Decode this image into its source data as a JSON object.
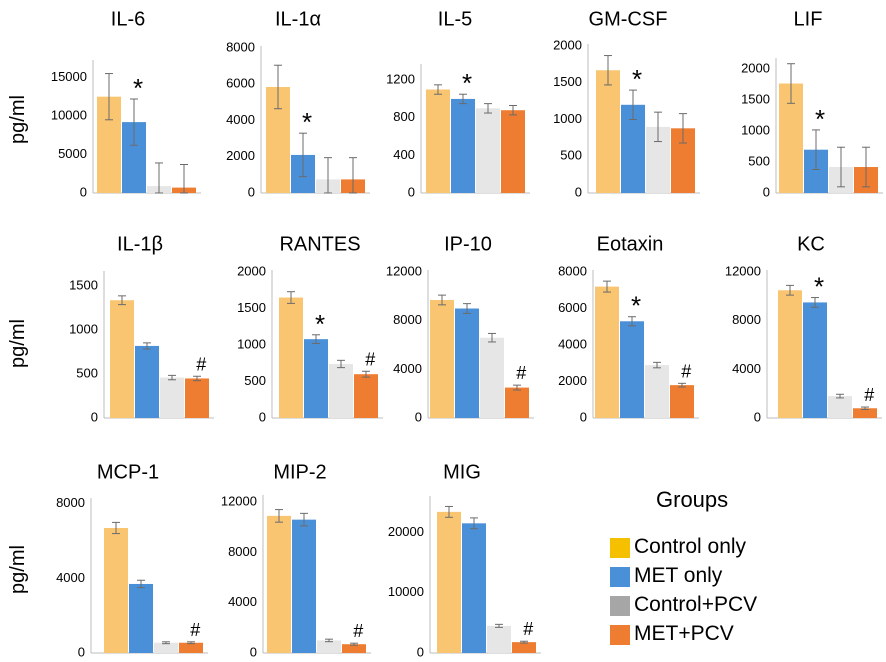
{
  "y_axis_label": "pg/ml",
  "legend": {
    "title": "Groups",
    "items": [
      {
        "label": "Control only",
        "color": "#F5C000"
      },
      {
        "label": "MET only",
        "color": "#4A90D9"
      },
      {
        "label": "Control+PCV",
        "color": "#A6A6A6"
      },
      {
        "label": "MET+PCV",
        "color": "#EE7D31"
      }
    ]
  },
  "bar_colors": [
    "#F9C571",
    "#4A90D9",
    "#E6E6E6",
    "#EE7D31"
  ],
  "chart_data": [
    {
      "type": "bar",
      "title": "IL-6",
      "categories": [
        "Control only",
        "MET only",
        "Control+PCV",
        "MET+PCV"
      ],
      "values": [
        12500,
        9200,
        900,
        700
      ],
      "errors": [
        3000,
        3000,
        3000,
        3000
      ],
      "yticks": [
        0,
        5000,
        10000,
        15000
      ],
      "ylim": [
        0,
        17000
      ],
      "markers": [
        "",
        "*",
        "",
        ""
      ]
    },
    {
      "type": "bar",
      "title": "IL-1α",
      "categories": [
        "Control only",
        "MET only",
        "Control+PCV",
        "MET+PCV"
      ],
      "values": [
        5850,
        2100,
        750,
        750
      ],
      "errors": [
        1200,
        1200,
        1200,
        1200
      ],
      "yticks": [
        0,
        2000,
        4000,
        6000,
        8000
      ],
      "ylim": [
        0,
        8000
      ],
      "markers": [
        "",
        "*",
        "",
        ""
      ]
    },
    {
      "type": "bar",
      "title": "IL-5",
      "categories": [
        "Control only",
        "MET only",
        "Control+PCV",
        "MET+PCV"
      ],
      "values": [
        1100,
        1000,
        900,
        880
      ],
      "errors": [
        50,
        50,
        50,
        50
      ],
      "yticks": [
        0,
        400,
        800,
        1200
      ],
      "ylim": [
        0,
        1350
      ],
      "markers": [
        "",
        "*",
        "",
        ""
      ]
    },
    {
      "type": "bar",
      "title": "GM-CSF",
      "categories": [
        "Control only",
        "MET only",
        "Control+PCV",
        "MET+PCV"
      ],
      "values": [
        1670,
        1200,
        900,
        880
      ],
      "errors": [
        200,
        200,
        200,
        200
      ],
      "yticks": [
        0,
        500,
        1000,
        1500,
        2000
      ],
      "ylim": [
        0,
        2000
      ],
      "markers": [
        "",
        "*",
        "",
        ""
      ]
    },
    {
      "type": "bar",
      "title": "LIF",
      "categories": [
        "Control only",
        "MET only",
        "Control+PCV",
        "MET+PCV"
      ],
      "values": [
        1770,
        700,
        420,
        420
      ],
      "errors": [
        320,
        320,
        320,
        320
      ],
      "yticks": [
        0,
        500,
        1000,
        1500,
        2000
      ],
      "ylim": [
        0,
        2150
      ],
      "markers": [
        "",
        "*",
        "",
        ""
      ]
    },
    {
      "type": "bar",
      "title": "IL-1β",
      "categories": [
        "Control only",
        "MET only",
        "Control+PCV",
        "MET+PCV"
      ],
      "values": [
        1340,
        820,
        460,
        450
      ],
      "errors": [
        50,
        35,
        25,
        25
      ],
      "yticks": [
        0,
        500,
        1000,
        1500
      ],
      "ylim": [
        0,
        1650
      ],
      "markers": [
        "",
        "",
        "",
        "#"
      ]
    },
    {
      "type": "bar",
      "title": "RANTES",
      "categories": [
        "Control only",
        "MET only",
        "Control+PCV",
        "MET+PCV"
      ],
      "values": [
        1650,
        1080,
        740,
        600
      ],
      "errors": [
        80,
        60,
        50,
        40
      ],
      "yticks": [
        0,
        500,
        1000,
        1500,
        2000
      ],
      "ylim": [
        0,
        2000
      ],
      "markers": [
        "",
        "*",
        "",
        "#"
      ]
    },
    {
      "type": "bar",
      "title": "IP-10",
      "categories": [
        "Control only",
        "MET only",
        "Control+PCV",
        "MET+PCV"
      ],
      "values": [
        9700,
        9000,
        6600,
        2500
      ],
      "errors": [
        400,
        400,
        350,
        200
      ],
      "yticks": [
        0,
        4000,
        8000,
        12000
      ],
      "ylim": [
        0,
        12000
      ],
      "markers": [
        "",
        "",
        "",
        "#"
      ]
    },
    {
      "type": "bar",
      "title": "Eotaxin",
      "categories": [
        "Control only",
        "MET only",
        "Control+PCV",
        "MET+PCV"
      ],
      "values": [
        7200,
        5300,
        2900,
        1800
      ],
      "errors": [
        300,
        250,
        150,
        100
      ],
      "yticks": [
        0,
        2000,
        4000,
        6000,
        8000
      ],
      "ylim": [
        0,
        8000
      ],
      "markers": [
        "",
        "*",
        "",
        "#"
      ]
    },
    {
      "type": "bar",
      "title": "KC",
      "categories": [
        "Control only",
        "MET only",
        "Control+PCV",
        "MET+PCV"
      ],
      "values": [
        10500,
        9500,
        1800,
        800
      ],
      "errors": [
        400,
        400,
        150,
        100
      ],
      "yticks": [
        0,
        4000,
        8000,
        12000
      ],
      "ylim": [
        0,
        12000
      ],
      "markers": [
        "",
        "*",
        "",
        "#"
      ]
    },
    {
      "type": "bar",
      "title": "MCP-1",
      "categories": [
        "Control only",
        "MET only",
        "Control+PCV",
        "MET+PCV"
      ],
      "values": [
        6700,
        3700,
        550,
        550
      ],
      "errors": [
        300,
        200,
        50,
        50
      ],
      "yticks": [
        0,
        4000,
        8000
      ],
      "ylim": [
        0,
        8200
      ],
      "markers": [
        "",
        "",
        "",
        "#"
      ]
    },
    {
      "type": "bar",
      "title": "MIP-2",
      "categories": [
        "Control only",
        "MET only",
        "Control+PCV",
        "MET+PCV"
      ],
      "values": [
        10900,
        10600,
        1000,
        700
      ],
      "errors": [
        500,
        500,
        100,
        80
      ],
      "yticks": [
        0,
        4000,
        8000,
        12000
      ],
      "ylim": [
        0,
        12400
      ],
      "markers": [
        "",
        "",
        "",
        "#"
      ]
    },
    {
      "type": "bar",
      "title": "MIG",
      "categories": [
        "Control only",
        "MET only",
        "Control+PCV",
        "MET+PCV"
      ],
      "values": [
        23400,
        21500,
        4500,
        1800
      ],
      "errors": [
        900,
        900,
        250,
        150
      ],
      "yticks": [
        0,
        10000,
        20000
      ],
      "ylim": [
        0,
        25700
      ],
      "markers": [
        "",
        "",
        "",
        "#"
      ]
    }
  ]
}
